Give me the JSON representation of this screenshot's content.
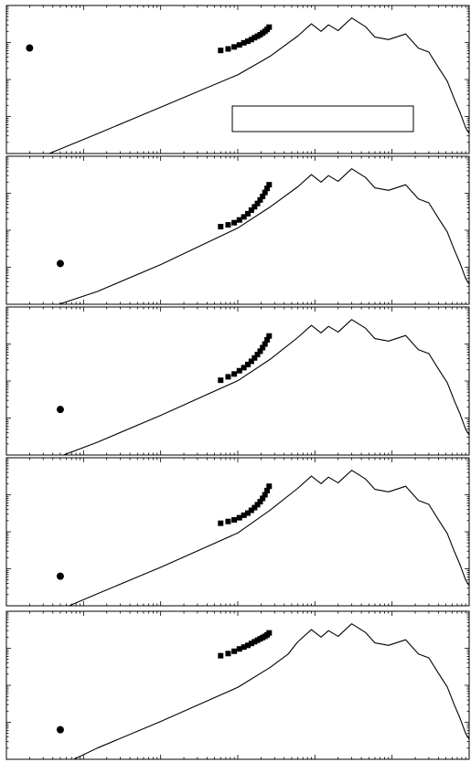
{
  "chart_data": [
    {
      "type": "scatter",
      "title": "",
      "xlabel": "",
      "ylabel": "",
      "xscale": "log",
      "yscale": "log",
      "xlim": [
        1,
        1000000
      ],
      "ylim": [
        0.001,
        10
      ],
      "grid": false,
      "annotation_box": true,
      "series": [
        {
          "marker": "line",
          "x": [
            3.6,
            15,
            100,
            1000,
            2600,
            6000,
            9000,
            12000,
            15000,
            20000,
            30000,
            45000,
            60000,
            90000,
            150000,
            220000,
            300000,
            400000,
            520000,
            640000,
            760000,
            900000,
            1000000
          ],
          "y": [
            0.001,
            0.0034,
            0.0178,
            0.134,
            0.42,
            1.5,
            3.2,
            2.0,
            3.0,
            2.1,
            4.6,
            2.7,
            1.4,
            1.2,
            1.7,
            0.7,
            0.55,
            0.21,
            0.09,
            0.03,
            0.013,
            0.005,
            0.0035
          ]
        },
        {
          "marker": "circle",
          "x": [
            2
          ],
          "y": [
            0.71
          ]
        },
        {
          "marker": "square",
          "x": [
            600,
            750,
            900,
            1050,
            1200,
            1350,
            1500,
            1650,
            1800,
            1950,
            2100,
            2250,
            2400,
            2550
          ],
          "y": [
            0.61,
            0.67,
            0.76,
            0.86,
            0.98,
            1.08,
            1.2,
            1.35,
            1.48,
            1.62,
            1.8,
            2.0,
            2.25,
            2.6
          ]
        }
      ]
    },
    {
      "type": "scatter",
      "title": "",
      "xlabel": "",
      "ylabel": "",
      "xscale": "log",
      "yscale": "log",
      "xlim": [
        1,
        1000000
      ],
      "ylim": [
        0.001,
        10
      ],
      "grid": false,
      "series": [
        {
          "marker": "line",
          "x": [
            4.8,
            15,
            100,
            1000,
            2600,
            6000,
            9000,
            12000,
            15000,
            20000,
            30000,
            45000,
            60000,
            90000,
            150000,
            220000,
            300000,
            400000,
            520000,
            640000,
            760000,
            900000,
            1000000
          ],
          "y": [
            0.001,
            0.0022,
            0.0118,
            0.115,
            0.42,
            1.5,
            3.2,
            2.0,
            3.0,
            2.1,
            4.6,
            2.7,
            1.4,
            1.2,
            1.7,
            0.7,
            0.55,
            0.21,
            0.09,
            0.03,
            0.013,
            0.005,
            0.0035
          ]
        },
        {
          "marker": "circle",
          "x": [
            5
          ],
          "y": [
            0.0126
          ]
        },
        {
          "marker": "square",
          "x": [
            600,
            750,
            900,
            1050,
            1200,
            1350,
            1500,
            1650,
            1800,
            1950,
            2100,
            2250,
            2400,
            2550
          ],
          "y": [
            0.125,
            0.14,
            0.16,
            0.19,
            0.23,
            0.28,
            0.35,
            0.43,
            0.53,
            0.66,
            0.82,
            1.05,
            1.35,
            1.7
          ]
        }
      ]
    },
    {
      "type": "scatter",
      "title": "",
      "xlabel": "",
      "ylabel": "",
      "xscale": "log",
      "yscale": "log",
      "xlim": [
        1,
        1000000
      ],
      "ylim": [
        0.001,
        10
      ],
      "grid": false,
      "series": [
        {
          "marker": "line",
          "x": [
            5.5,
            15,
            100,
            1000,
            2600,
            6000,
            9000,
            12000,
            15000,
            20000,
            30000,
            45000,
            60000,
            90000,
            150000,
            220000,
            300000,
            400000,
            520000,
            640000,
            760000,
            900000,
            1000000
          ],
          "y": [
            0.001,
            0.0022,
            0.0118,
            0.102,
            0.38,
            1.5,
            3.2,
            2.0,
            3.0,
            2.1,
            4.6,
            2.7,
            1.4,
            1.2,
            1.7,
            0.7,
            0.55,
            0.21,
            0.09,
            0.03,
            0.013,
            0.005,
            0.0035
          ]
        },
        {
          "marker": "circle",
          "x": [
            5
          ],
          "y": [
            0.017
          ]
        },
        {
          "marker": "square",
          "x": [
            600,
            750,
            900,
            1050,
            1200,
            1350,
            1500,
            1650,
            1800,
            1950,
            2100,
            2250,
            2400,
            2550
          ],
          "y": [
            0.105,
            0.13,
            0.155,
            0.19,
            0.23,
            0.28,
            0.34,
            0.42,
            0.52,
            0.64,
            0.8,
            1.0,
            1.3,
            1.65
          ]
        }
      ]
    },
    {
      "type": "scatter",
      "title": "",
      "xlabel": "",
      "ylabel": "",
      "xscale": "log",
      "yscale": "log",
      "xlim": [
        1,
        1000000
      ],
      "ylim": [
        0.001,
        10
      ],
      "grid": false,
      "series": [
        {
          "marker": "line",
          "x": [
            6.5,
            15,
            100,
            1000,
            2600,
            6000,
            9000,
            12000,
            15000,
            20000,
            30000,
            45000,
            60000,
            90000,
            150000,
            220000,
            300000,
            400000,
            520000,
            640000,
            760000,
            900000,
            1000000
          ],
          "y": [
            0.001,
            0.0021,
            0.011,
            0.093,
            0.38,
            1.5,
            3.2,
            2.0,
            3.0,
            2.1,
            4.6,
            2.7,
            1.4,
            1.2,
            1.7,
            0.7,
            0.55,
            0.21,
            0.09,
            0.03,
            0.013,
            0.005,
            0.0035
          ]
        },
        {
          "marker": "circle",
          "x": [
            5
          ],
          "y": [
            0.0063
          ]
        },
        {
          "marker": "square",
          "x": [
            600,
            750,
            900,
            1050,
            1200,
            1350,
            1500,
            1650,
            1800,
            1950,
            2100,
            2250,
            2400,
            2550
          ],
          "y": [
            0.17,
            0.19,
            0.21,
            0.24,
            0.28,
            0.32,
            0.38,
            0.45,
            0.54,
            0.65,
            0.8,
            1.0,
            1.3,
            1.7
          ]
        }
      ]
    },
    {
      "type": "scatter",
      "title": "",
      "xlabel": "",
      "ylabel": "",
      "xscale": "log",
      "yscale": "log",
      "xlim": [
        1,
        1000000
      ],
      "ylim": [
        0.001,
        10
      ],
      "grid": false,
      "series": [
        {
          "marker": "line",
          "x": [
            7.5,
            15,
            100,
            1000,
            2600,
            4500,
            6000,
            9000,
            12000,
            15000,
            20000,
            30000,
            45000,
            60000,
            90000,
            150000,
            220000,
            300000,
            400000,
            520000,
            640000,
            760000,
            900000,
            1000000
          ],
          "y": [
            0.001,
            0.002,
            0.0105,
            0.088,
            0.3,
            0.7,
            1.5,
            3.2,
            2.0,
            3.0,
            2.1,
            4.6,
            2.7,
            1.4,
            1.2,
            1.7,
            0.7,
            0.55,
            0.21,
            0.09,
            0.03,
            0.013,
            0.005,
            0.0035
          ]
        },
        {
          "marker": "circle",
          "x": [
            5
          ],
          "y": [
            0.0063
          ]
        },
        {
          "marker": "square",
          "x": [
            600,
            750,
            900,
            1050,
            1200,
            1350,
            1500,
            1650,
            1800,
            1950,
            2100,
            2250,
            2400,
            2550
          ],
          "y": [
            0.63,
            0.72,
            0.83,
            0.96,
            1.08,
            1.2,
            1.35,
            1.5,
            1.65,
            1.8,
            1.95,
            2.1,
            2.3,
            2.6
          ]
        }
      ]
    }
  ]
}
